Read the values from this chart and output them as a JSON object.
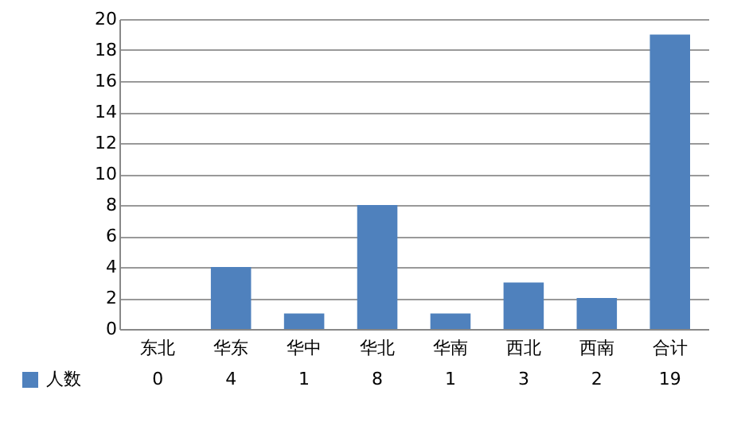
{
  "chart_data": {
    "type": "bar",
    "categories": [
      "东北",
      "华东",
      "华中",
      "华北",
      "华南",
      "西北",
      "西南",
      "合计"
    ],
    "series": [
      {
        "name": "人数",
        "color": "#4f81bd",
        "values": [
          0,
          4,
          1,
          8,
          1,
          3,
          2,
          19
        ]
      }
    ],
    "ylim": [
      0,
      20
    ],
    "yticks": [
      0,
      2,
      4,
      6,
      8,
      10,
      12,
      14,
      16,
      18,
      20
    ],
    "grid": "y",
    "legend": "bottom",
    "data_labels": true
  }
}
